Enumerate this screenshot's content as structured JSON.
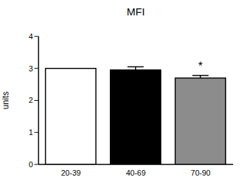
{
  "chart_data": {
    "type": "bar",
    "title": "MFI",
    "y_label": "units",
    "categories": [
      "20-39",
      "40-69",
      "70-90"
    ],
    "values": [
      3.0,
      2.95,
      2.7
    ],
    "errors": [
      0,
      0.1,
      0.08
    ],
    "colors": [
      "#ffffff",
      "#000000",
      "#8c8c8c"
    ],
    "ylim": [
      0,
      4
    ],
    "yticks": [
      0,
      1,
      2,
      3,
      4
    ],
    "annotations": [
      {
        "text": "*",
        "category": "70-90"
      }
    ]
  }
}
